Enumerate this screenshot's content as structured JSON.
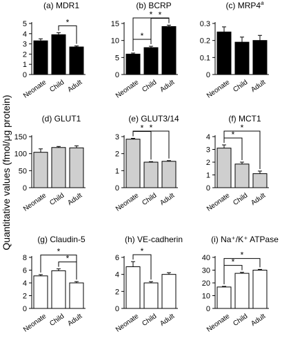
{
  "figure": {
    "ylabel": "Quantitative values (fmol/μg protein)"
  },
  "chart_data": [
    {
      "type": "bar",
      "title": "(a) MDR1",
      "categories": [
        "Neonate",
        "Child",
        "Adult"
      ],
      "values": [
        3.3,
        3.9,
        2.7
      ],
      "errors": [
        0.2,
        0.2,
        0.1
      ],
      "ylim": [
        0,
        5
      ],
      "yticks": [
        0,
        1,
        2,
        3,
        4,
        5
      ],
      "bar_color": "#000000",
      "significance": [
        {
          "pair": [
            1,
            2
          ],
          "label": "*"
        }
      ]
    },
    {
      "type": "bar",
      "title": "(b) BCRP",
      "categories": [
        "Neonate",
        "Child",
        "Adult"
      ],
      "values": [
        6.0,
        7.9,
        14.1
      ],
      "errors": [
        0.3,
        0.4,
        0.4
      ],
      "ylim": [
        0,
        15
      ],
      "yticks": [
        0,
        5,
        10,
        15
      ],
      "bar_color": "#000000",
      "significance": [
        {
          "pair": [
            0,
            1
          ],
          "label": "*"
        },
        {
          "pair": [
            1,
            2
          ],
          "label": "*"
        },
        {
          "pair": [
            0,
            2
          ],
          "label": "*"
        }
      ]
    },
    {
      "type": "bar",
      "title": "(c) MRP4",
      "title_sup": "a",
      "categories": [
        "Neonate",
        "Child",
        "Adult"
      ],
      "values": [
        0.25,
        0.19,
        0.2
      ],
      "errors": [
        0.03,
        0.03,
        0.03
      ],
      "ylim": [
        0,
        0.3
      ],
      "yticks": [
        0,
        0.1,
        0.2,
        0.3
      ],
      "bar_color": "#000000",
      "significance": []
    },
    {
      "type": "bar",
      "title": "(d) GLUT1",
      "categories": [
        "Neonate",
        "Child",
        "Adult"
      ],
      "values": [
        104,
        118,
        117
      ],
      "errors": [
        10,
        3,
        6
      ],
      "ylim": [
        0,
        150
      ],
      "yticks": [
        0,
        50,
        100,
        150
      ],
      "bar_color": "#cfcfcf",
      "significance": []
    },
    {
      "type": "bar",
      "title": "(e) GLUT3/14",
      "categories": [
        "Neonate",
        "Child",
        "Adult"
      ],
      "values": [
        2.85,
        1.5,
        1.55
      ],
      "errors": [
        0.05,
        0.03,
        0.04
      ],
      "ylim": [
        0,
        3
      ],
      "yticks": [
        0,
        1,
        2,
        3
      ],
      "bar_color": "#cfcfcf",
      "significance": [
        {
          "pair": [
            0,
            1
          ],
          "label": "*"
        },
        {
          "pair": [
            0,
            2
          ],
          "label": "*"
        }
      ]
    },
    {
      "type": "bar",
      "title": "(f) MCT1",
      "categories": [
        "Neonate",
        "Child",
        "Adult"
      ],
      "values": [
        3.1,
        1.85,
        1.1
      ],
      "errors": [
        0.25,
        0.15,
        0.2
      ],
      "ylim": [
        0,
        4
      ],
      "yticks": [
        0,
        1,
        2,
        3,
        4
      ],
      "bar_color": "#cfcfcf",
      "significance": [
        {
          "pair": [
            0,
            1
          ],
          "label": "*"
        },
        {
          "pair": [
            0,
            2
          ],
          "label": "*"
        }
      ]
    },
    {
      "type": "bar",
      "title": "(g) Claudin-5",
      "categories": [
        "Neonate",
        "Child",
        "Adult"
      ],
      "values": [
        5.1,
        5.9,
        4.0
      ],
      "errors": [
        0.2,
        0.3,
        0.2
      ],
      "ylim": [
        0,
        8
      ],
      "yticks": [
        0,
        2,
        4,
        6,
        8
      ],
      "bar_color": "#ffffff",
      "significance": [
        {
          "pair": [
            1,
            2
          ],
          "label": "*"
        },
        {
          "pair": [
            0,
            2
          ],
          "label": "*"
        }
      ]
    },
    {
      "type": "bar",
      "title": "(h) VE-cadherin",
      "categories": [
        "Neonate",
        "Child",
        "Adult"
      ],
      "values": [
        4.9,
        3.0,
        4.0
      ],
      "errors": [
        0.6,
        0.15,
        0.2
      ],
      "ylim": [
        0,
        6
      ],
      "yticks": [
        0,
        2,
        4,
        6
      ],
      "bar_color": "#ffffff",
      "significance": [
        {
          "pair": [
            0,
            1
          ],
          "label": "*"
        }
      ]
    },
    {
      "type": "bar",
      "title": "(i) Na⁺/K⁺ ATPase",
      "categories": [
        "Neonate",
        "Child",
        "Adult"
      ],
      "values": [
        16.8,
        27.5,
        30.0
      ],
      "errors": [
        0.5,
        0.8,
        0.6
      ],
      "ylim": [
        0,
        40
      ],
      "yticks": [
        0,
        10,
        20,
        30,
        40
      ],
      "bar_color": "#ffffff",
      "significance": [
        {
          "pair": [
            0,
            1
          ],
          "label": "*"
        },
        {
          "pair": [
            0,
            2
          ],
          "label": "*"
        }
      ]
    }
  ]
}
